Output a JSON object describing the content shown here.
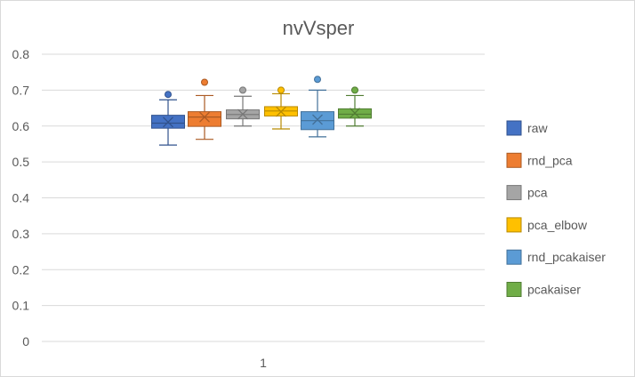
{
  "chart_data": {
    "type": "boxplot",
    "title": "nvVsper",
    "categories": [
      "1"
    ],
    "ylim": [
      0,
      0.8
    ],
    "yticks": [
      "0",
      "0.1",
      "0.2",
      "0.3",
      "0.4",
      "0.5",
      "0.6",
      "0.7",
      "0.8"
    ],
    "grid": true,
    "legend_position": "right",
    "series": [
      {
        "name": "raw",
        "color": "#4472C4",
        "min": 0.547,
        "q1": 0.594,
        "median": 0.608,
        "mean": 0.611,
        "q3": 0.63,
        "max": 0.673,
        "outliers": [
          0.688
        ]
      },
      {
        "name": "rnd_pca",
        "color": "#ED7D31",
        "min": 0.563,
        "q1": 0.599,
        "median": 0.625,
        "mean": 0.625,
        "q3": 0.64,
        "max": 0.685,
        "outliers": [
          0.722
        ]
      },
      {
        "name": "pca",
        "color": "#A5A5A5",
        "min": 0.6,
        "q1": 0.62,
        "median": 0.632,
        "mean": 0.633,
        "q3": 0.645,
        "max": 0.683,
        "outliers": [
          0.7
        ]
      },
      {
        "name": "pca_elbow",
        "color": "#FFC000",
        "min": 0.592,
        "q1": 0.628,
        "median": 0.642,
        "mean": 0.64,
        "q3": 0.654,
        "max": 0.69,
        "outliers": [
          0.7
        ]
      },
      {
        "name": "rnd_pcakaiser",
        "color": "#5B9BD5",
        "min": 0.57,
        "q1": 0.59,
        "median": 0.615,
        "mean": 0.618,
        "q3": 0.64,
        "max": 0.7,
        "outliers": [
          0.73
        ]
      },
      {
        "name": "pcakaiser",
        "color": "#70AD47",
        "min": 0.6,
        "q1": 0.622,
        "median": 0.633,
        "mean": 0.636,
        "q3": 0.648,
        "max": 0.685,
        "outliers": [
          0.7
        ]
      }
    ]
  }
}
